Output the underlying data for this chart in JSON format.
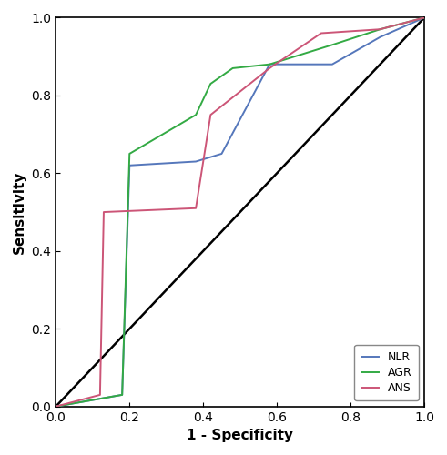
{
  "title": "",
  "xlabel": "1 - Specificity",
  "ylabel": "Sensitivity",
  "xlim": [
    0.0,
    1.0
  ],
  "ylim": [
    0.0,
    1.0
  ],
  "xticks": [
    0.0,
    0.2,
    0.4,
    0.6,
    0.8,
    1.0
  ],
  "yticks": [
    0.0,
    0.2,
    0.4,
    0.6,
    0.8,
    1.0
  ],
  "diagonal_color": "#000000",
  "NLR": {
    "x": [
      0.0,
      0.18,
      0.2,
      0.38,
      0.45,
      0.58,
      0.75,
      0.88,
      1.0
    ],
    "y": [
      0.0,
      0.03,
      0.62,
      0.63,
      0.65,
      0.88,
      0.88,
      0.95,
      1.0
    ],
    "color": "#5577bb"
  },
  "AGR": {
    "x": [
      0.0,
      0.18,
      0.2,
      0.38,
      0.42,
      0.48,
      0.58,
      0.75,
      0.88,
      1.0
    ],
    "y": [
      0.0,
      0.03,
      0.65,
      0.75,
      0.83,
      0.87,
      0.88,
      0.93,
      0.97,
      1.0
    ],
    "color": "#33aa44"
  },
  "ANS": {
    "x": [
      0.0,
      0.12,
      0.13,
      0.38,
      0.42,
      0.58,
      0.72,
      0.88,
      1.0
    ],
    "y": [
      0.0,
      0.03,
      0.5,
      0.51,
      0.75,
      0.87,
      0.96,
      0.97,
      1.0
    ],
    "color": "#cc5577"
  },
  "background_color": "#ffffff",
  "line_width": 1.4,
  "fontsize_axis_label": 11,
  "fontsize_ticks": 10,
  "fontsize_legend": 9
}
